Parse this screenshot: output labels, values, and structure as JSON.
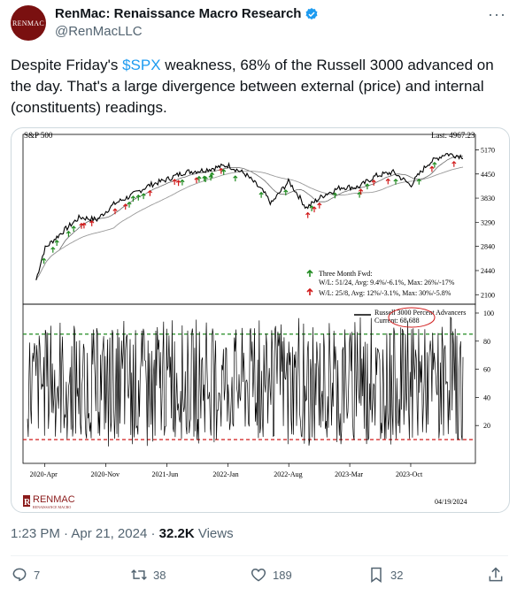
{
  "author": {
    "avatar_text": "RENMAC",
    "display_name": "RenMac: Renaissance Macro Research",
    "handle": "@RenMacLLC"
  },
  "tweet": {
    "text_before": "Despite Friday's ",
    "cashtag": "$SPX",
    "text_after": " weakness, 68% of the Russell 3000 advanced on the day.  That's a large divergence between external (price) and internal (constituents) readings."
  },
  "meta": {
    "time": "1:23 PM",
    "sep": " · ",
    "date": "Apr 21, 2024",
    "sep2": " · ",
    "views_count": "32.2K",
    "views_label": " Views"
  },
  "actions": {
    "replies": "7",
    "retweets": "38",
    "likes": "189",
    "bookmarks": "32"
  },
  "chart_data": [
    {
      "type": "line",
      "title": "S&P 500",
      "top_right_label": "Last: 4967.23",
      "y_ticks": [
        5170,
        4450,
        3830,
        3290,
        2840,
        2440,
        2100
      ],
      "scale": "log",
      "x_ticks": [
        "2020-Apr",
        "2020-Nov",
        "2021-Jun",
        "2022-Jan",
        "2022-Aug",
        "2023-Mar",
        "2023-Oct"
      ],
      "series": [
        {
          "x": [
            "2020-03",
            "2020-04",
            "2020-06",
            "2020-08",
            "2020-10",
            "2020-12",
            "2021-02",
            "2021-04",
            "2021-06",
            "2021-08",
            "2021-10",
            "2022-01",
            "2022-03",
            "2022-05",
            "2022-06",
            "2022-08",
            "2022-10",
            "2022-12",
            "2023-02",
            "2023-04",
            "2023-06",
            "2023-08",
            "2023-10",
            "2023-12",
            "2024-02",
            "2024-04"
          ],
          "y": [
            2300,
            2800,
            3100,
            3400,
            3350,
            3700,
            3900,
            4150,
            4300,
            4500,
            4550,
            4700,
            4450,
            4000,
            3700,
            4250,
            3600,
            3900,
            4100,
            4100,
            4400,
            4500,
            4150,
            4750,
            5050,
            4967
          ]
        }
      ],
      "legend": [
        {
          "marker": "green-arrow-up",
          "text": "Three Month Fwd:"
        },
        {
          "marker": "",
          "text": "W/L: 51/24, Avg: 9.4%/-6.1%, Max: 26%/-17%"
        },
        {
          "marker": "red-arrow-up",
          "text": "W/L: 25/8, Avg: 12%/-3.1%, Max: 30%/-5.8%"
        }
      ],
      "colors": {
        "price": "#000000",
        "up_signal": "#1f8a1f",
        "down_signal": "#d11b1b",
        "ma": "#9a9a9a"
      }
    },
    {
      "type": "line",
      "y_ticks": [
        100,
        80,
        60,
        40,
        20
      ],
      "legend": [
        {
          "text": "Russell 3000 Percent Advancers"
        },
        {
          "text": "Current: 68.688"
        }
      ],
      "current": 68.688,
      "thresholds": [
        {
          "value": 85,
          "color": "#1f8a1f",
          "style": "dashed"
        },
        {
          "value": 10,
          "color": "#d11b1b",
          "style": "dashed"
        }
      ]
    }
  ],
  "chart_footer": {
    "brand": "RENMAC",
    "brand_sub": "RENAISSANCE MACRO",
    "date": "04/19/2024"
  }
}
